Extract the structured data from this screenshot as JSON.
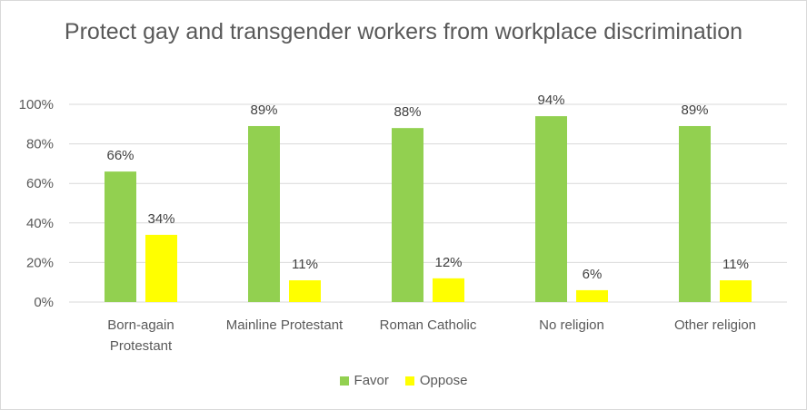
{
  "chart_data": {
    "type": "bar",
    "title": "Protect gay and transgender workers from workplace discrimination",
    "categories": [
      [
        "Born-again",
        "Protestant"
      ],
      [
        "Mainline Protestant"
      ],
      [
        "Roman Catholic"
      ],
      [
        "No religion"
      ],
      [
        "Other religion"
      ]
    ],
    "series": [
      {
        "name": "Favor",
        "color": "#92d050",
        "values": [
          66,
          89,
          88,
          94,
          89
        ],
        "labels": [
          "66%",
          "89%",
          "88%",
          "94%",
          "89%"
        ]
      },
      {
        "name": "Oppose",
        "color": "#ffff00",
        "values": [
          34,
          11,
          12,
          6,
          11
        ],
        "labels": [
          "34%",
          "11%",
          "12%",
          "6%",
          "11%"
        ]
      }
    ],
    "ylim": [
      0,
      100
    ],
    "yticks": [
      "0%",
      "20%",
      "40%",
      "60%",
      "80%",
      "100%"
    ],
    "grid": true,
    "grid_color": "#d9d9d9",
    "legend_position": "bottom"
  }
}
